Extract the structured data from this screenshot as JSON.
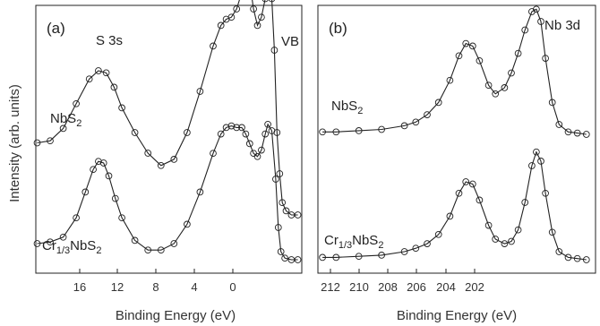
{
  "ylabel": "Intensity (arb. units)",
  "chart_data": [
    {
      "panel": "(a)",
      "type": "scatter",
      "xlabel": "Binding Energy (eV)",
      "xlim": [
        18.6,
        -1.8
      ],
      "xticks": [
        "16",
        "12",
        "8",
        "4",
        "0"
      ],
      "annotations": [
        "S 3s",
        "VB"
      ],
      "series": [
        {
          "name": "NbS2",
          "label_main": "NbS",
          "label_sub": "2",
          "x": [
            18.5,
            17.5,
            16.5,
            15.5,
            14.5,
            13.8,
            13.2,
            12.6,
            12.0,
            11.0,
            10.0,
            9.0,
            8.0,
            7.0,
            6.0,
            5.0,
            4.4,
            4.0,
            3.6,
            3.2,
            2.8,
            2.5,
            2.2,
            1.9,
            1.6,
            1.3,
            1.0,
            0.8,
            0.5,
            0.3,
            0.1,
            -0.1,
            -0.3,
            -0.6,
            -1.0,
            -1.5
          ],
          "y": [
            0.35,
            0.36,
            0.42,
            0.54,
            0.66,
            0.7,
            0.69,
            0.62,
            0.52,
            0.4,
            0.3,
            0.24,
            0.27,
            0.4,
            0.6,
            0.82,
            0.92,
            0.95,
            0.96,
            1.0,
            1.08,
            1.14,
            1.13,
            1.0,
            0.92,
            0.96,
            1.05,
            1.1,
            1.05,
            0.8,
            0.4,
            0.2,
            0.06,
            0.02,
            0.0,
            0.0
          ]
        },
        {
          "name": "Cr1/3NbS2",
          "label_main": "Cr",
          "label_sub": "1/3",
          "label_main2": "NbS",
          "label_sub2": "2",
          "x": [
            18.5,
            17.5,
            16.5,
            15.5,
            14.8,
            14.2,
            13.8,
            13.4,
            13.0,
            12.5,
            12.0,
            11.0,
            10.0,
            9.0,
            8.0,
            7.0,
            6.0,
            5.0,
            4.4,
            4.0,
            3.6,
            3.2,
            2.8,
            2.5,
            2.2,
            1.9,
            1.6,
            1.3,
            1.0,
            0.8,
            0.5,
            0.2,
            0.0,
            -0.2,
            -0.5,
            -1.0,
            -1.5
          ],
          "y": [
            0.1,
            0.11,
            0.14,
            0.26,
            0.42,
            0.56,
            0.61,
            0.6,
            0.52,
            0.38,
            0.26,
            0.12,
            0.06,
            0.06,
            0.1,
            0.22,
            0.42,
            0.66,
            0.78,
            0.82,
            0.83,
            0.82,
            0.82,
            0.78,
            0.72,
            0.66,
            0.64,
            0.68,
            0.78,
            0.84,
            0.8,
            0.5,
            0.2,
            0.05,
            0.01,
            0.0,
            0.0
          ]
        }
      ]
    },
    {
      "panel": "(b)",
      "type": "scatter",
      "xlabel": "Binding Energy (eV)",
      "xlim": [
        212.8,
        200.6
      ],
      "xticks": [
        "212",
        "210",
        "208",
        "206",
        "204",
        "202"
      ],
      "annotations": [
        "Nb 3d"
      ],
      "series": [
        {
          "name": "NbS2",
          "label_main": "NbS",
          "label_sub": "2",
          "x": [
            212.6,
            212.0,
            211.0,
            210.0,
            209.0,
            208.5,
            208.0,
            207.5,
            207.0,
            206.6,
            206.3,
            206.0,
            205.7,
            205.3,
            205.0,
            204.6,
            204.3,
            204.0,
            203.7,
            203.4,
            203.2,
            203.0,
            202.8,
            202.5,
            202.2,
            201.8,
            201.4,
            201.0
          ],
          "y": [
            0.02,
            0.02,
            0.03,
            0.04,
            0.07,
            0.1,
            0.16,
            0.26,
            0.44,
            0.64,
            0.74,
            0.72,
            0.6,
            0.4,
            0.33,
            0.38,
            0.5,
            0.66,
            0.85,
            1.0,
            1.02,
            0.92,
            0.62,
            0.26,
            0.08,
            0.02,
            0.01,
            0.0
          ]
        },
        {
          "name": "Cr1/3NbS2",
          "label_main": "Cr",
          "label_sub": "1/3",
          "label_main2": "NbS",
          "label_sub2": "2",
          "x": [
            212.6,
            212.0,
            211.0,
            210.0,
            209.0,
            208.5,
            208.0,
            207.5,
            207.0,
            206.6,
            206.3,
            206.0,
            205.7,
            205.3,
            205.0,
            204.6,
            204.3,
            204.0,
            203.7,
            203.4,
            203.2,
            203.0,
            202.8,
            202.5,
            202.2,
            201.8,
            201.4,
            201.0
          ],
          "y": [
            0.02,
            0.02,
            0.03,
            0.04,
            0.07,
            0.1,
            0.14,
            0.22,
            0.38,
            0.58,
            0.68,
            0.66,
            0.52,
            0.3,
            0.18,
            0.14,
            0.16,
            0.26,
            0.5,
            0.82,
            0.94,
            0.86,
            0.58,
            0.24,
            0.07,
            0.02,
            0.01,
            0.0
          ]
        }
      ]
    }
  ]
}
